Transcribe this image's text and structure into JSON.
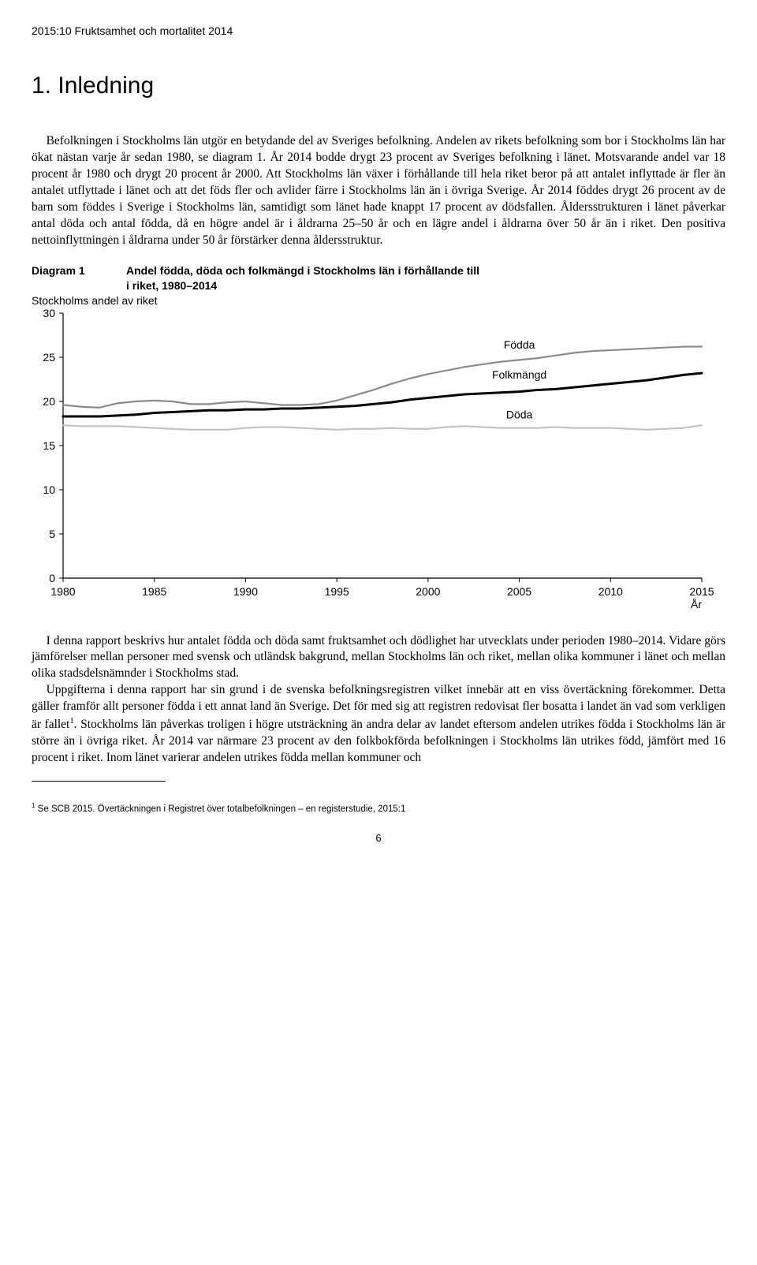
{
  "header": "2015:10 Fruktsamhet och mortalitet 2014",
  "title": "1. Inledning",
  "para1": "Befolkningen i Stockholms län utgör en betydande del av Sveriges befolkning. Andelen av rikets befolkning som bor i Stockholms län har ökat nästan varje år sedan 1980, se diagram 1. År 2014 bodde drygt 23 procent av Sveriges befolkning i länet. Motsvarande andel var 18 procent år 1980 och drygt 20 procent år 2000. Att Stockholms län växer i förhållande till hela riket beror på att antalet inflyttade är fler än antalet utflyttade i länet och att det föds fler och avlider färre i Stockholms län än i övriga Sverige. År 2014 föddes drygt 26 procent av de barn som föddes i Sverige i Stockholms län, samtidigt som länet hade knappt 17 procent av dödsfallen. Åldersstrukturen i länet påverkar antal döda och antal födda, då en högre andel är i åldrarna 25–50 år och en lägre andel i åldrarna över 50 år än i riket. Den positiva nettoinflyttningen i åldrarna under 50 år förstärker denna åldersstruktur.",
  "diagram_label": "Diagram 1",
  "diagram_title_l1": "Andel födda, döda och folkmängd i Stockholms län i förhållande till",
  "diagram_title_l2": "i riket, 1980–2014",
  "chart": {
    "type": "line",
    "y_sub_label": "Stockholms andel av riket",
    "x_axis_label": "År",
    "xlim": [
      1980,
      2015
    ],
    "ylim": [
      0,
      30
    ],
    "xticks": [
      1980,
      1985,
      1990,
      1995,
      2000,
      2005,
      2010,
      2015
    ],
    "yticks": [
      0,
      5,
      10,
      15,
      20,
      25,
      30
    ],
    "series": [
      {
        "name": "Födda",
        "color": "#8b8b8b",
        "width": 2.2,
        "values": [
          [
            1980,
            19.6
          ],
          [
            1981,
            19.4
          ],
          [
            1982,
            19.3
          ],
          [
            1983,
            19.8
          ],
          [
            1984,
            20.0
          ],
          [
            1985,
            20.1
          ],
          [
            1986,
            20.0
          ],
          [
            1987,
            19.7
          ],
          [
            1988,
            19.7
          ],
          [
            1989,
            19.9
          ],
          [
            1990,
            20.0
          ],
          [
            1991,
            19.8
          ],
          [
            1992,
            19.6
          ],
          [
            1993,
            19.6
          ],
          [
            1994,
            19.7
          ],
          [
            1995,
            20.1
          ],
          [
            1996,
            20.7
          ],
          [
            1997,
            21.3
          ],
          [
            1998,
            22.0
          ],
          [
            1999,
            22.6
          ],
          [
            2000,
            23.1
          ],
          [
            2001,
            23.5
          ],
          [
            2002,
            23.9
          ],
          [
            2003,
            24.2
          ],
          [
            2004,
            24.5
          ],
          [
            2005,
            24.7
          ],
          [
            2006,
            24.9
          ],
          [
            2007,
            25.2
          ],
          [
            2008,
            25.5
          ],
          [
            2009,
            25.7
          ],
          [
            2010,
            25.8
          ],
          [
            2011,
            25.9
          ],
          [
            2012,
            26.0
          ],
          [
            2013,
            26.1
          ],
          [
            2014,
            26.2
          ],
          [
            2015,
            26.2
          ]
        ]
      },
      {
        "name": "Folkmängd",
        "color": "#000000",
        "width": 3.0,
        "values": [
          [
            1980,
            18.3
          ],
          [
            1981,
            18.3
          ],
          [
            1982,
            18.3
          ],
          [
            1983,
            18.4
          ],
          [
            1984,
            18.5
          ],
          [
            1985,
            18.7
          ],
          [
            1986,
            18.8
          ],
          [
            1987,
            18.9
          ],
          [
            1988,
            19.0
          ],
          [
            1989,
            19.0
          ],
          [
            1990,
            19.1
          ],
          [
            1991,
            19.1
          ],
          [
            1992,
            19.2
          ],
          [
            1993,
            19.2
          ],
          [
            1994,
            19.3
          ],
          [
            1995,
            19.4
          ],
          [
            1996,
            19.5
          ],
          [
            1997,
            19.7
          ],
          [
            1998,
            19.9
          ],
          [
            1999,
            20.2
          ],
          [
            2000,
            20.4
          ],
          [
            2001,
            20.6
          ],
          [
            2002,
            20.8
          ],
          [
            2003,
            20.9
          ],
          [
            2004,
            21.0
          ],
          [
            2005,
            21.1
          ],
          [
            2006,
            21.3
          ],
          [
            2007,
            21.4
          ],
          [
            2008,
            21.6
          ],
          [
            2009,
            21.8
          ],
          [
            2010,
            22.0
          ],
          [
            2011,
            22.2
          ],
          [
            2012,
            22.4
          ],
          [
            2013,
            22.7
          ],
          [
            2014,
            23.0
          ],
          [
            2015,
            23.2
          ]
        ]
      },
      {
        "name": "Döda",
        "color": "#c4c4c4",
        "width": 2.2,
        "values": [
          [
            1980,
            17.3
          ],
          [
            1981,
            17.2
          ],
          [
            1982,
            17.2
          ],
          [
            1983,
            17.2
          ],
          [
            1984,
            17.1
          ],
          [
            1985,
            17.0
          ],
          [
            1986,
            16.9
          ],
          [
            1987,
            16.8
          ],
          [
            1988,
            16.8
          ],
          [
            1989,
            16.8
          ],
          [
            1990,
            17.0
          ],
          [
            1991,
            17.1
          ],
          [
            1992,
            17.1
          ],
          [
            1993,
            17.0
          ],
          [
            1994,
            16.9
          ],
          [
            1995,
            16.8
          ],
          [
            1996,
            16.9
          ],
          [
            1997,
            16.9
          ],
          [
            1998,
            17.0
          ],
          [
            1999,
            16.9
          ],
          [
            2000,
            16.9
          ],
          [
            2001,
            17.1
          ],
          [
            2002,
            17.2
          ],
          [
            2003,
            17.1
          ],
          [
            2004,
            17.0
          ],
          [
            2005,
            17.0
          ],
          [
            2006,
            17.0
          ],
          [
            2007,
            17.1
          ],
          [
            2008,
            17.0
          ],
          [
            2009,
            17.0
          ],
          [
            2010,
            17.0
          ],
          [
            2011,
            16.9
          ],
          [
            2012,
            16.8
          ],
          [
            2013,
            16.9
          ],
          [
            2014,
            17.0
          ],
          [
            2015,
            17.3
          ]
        ]
      }
    ],
    "series_labels": [
      {
        "text": "Födda",
        "x": 2005,
        "y": 26.0
      },
      {
        "text": "Folkmängd",
        "x": 2005,
        "y": 22.6
      },
      {
        "text": "Döda",
        "x": 2005,
        "y": 18.1
      }
    ],
    "label_font_family": "Arial, Helvetica, sans-serif",
    "tick_font_size": 14,
    "series_label_font_size": 14,
    "background": "#ffffff",
    "axis_color": "#000000"
  },
  "para2": "I denna rapport beskrivs hur antalet födda och döda samt fruktsamhet och dödlighet har utvecklats under perioden 1980–2014. Vidare görs jämförelser mellan personer med svensk och utländsk bakgrund, mellan Stockholms län och riket, mellan olika kommuner i länet och mellan olika stadsdelsnämnder i Stockholms stad.",
  "para3a": "Uppgifterna i denna rapport har sin grund i de svenska befolkningsregistren vilket innebär att en viss övertäckning förekommer. Detta gäller framför allt personer födda i ett annat land än Sverige. Det för med sig att registren redovisat fler bosatta i landet än vad som verkligen är fallet",
  "para3b": ". Stockholms län påverkas troligen i högre utsträckning än andra delar av landet eftersom andelen utrikes födda i Stockholms län är större än i övriga riket. År 2014 var närmare 23 procent av den folkbokförda befolkningen i Stockholms län utrikes född, jämfört med 16 procent i riket. Inom länet varierar andelen utrikes födda mellan kommuner och",
  "footnote_marker": "1",
  "footnote_text": " Se SCB 2015. Övertäckningen i Registret över totalbefolkningen – en registerstudie, 2015:1",
  "page_number": "6"
}
